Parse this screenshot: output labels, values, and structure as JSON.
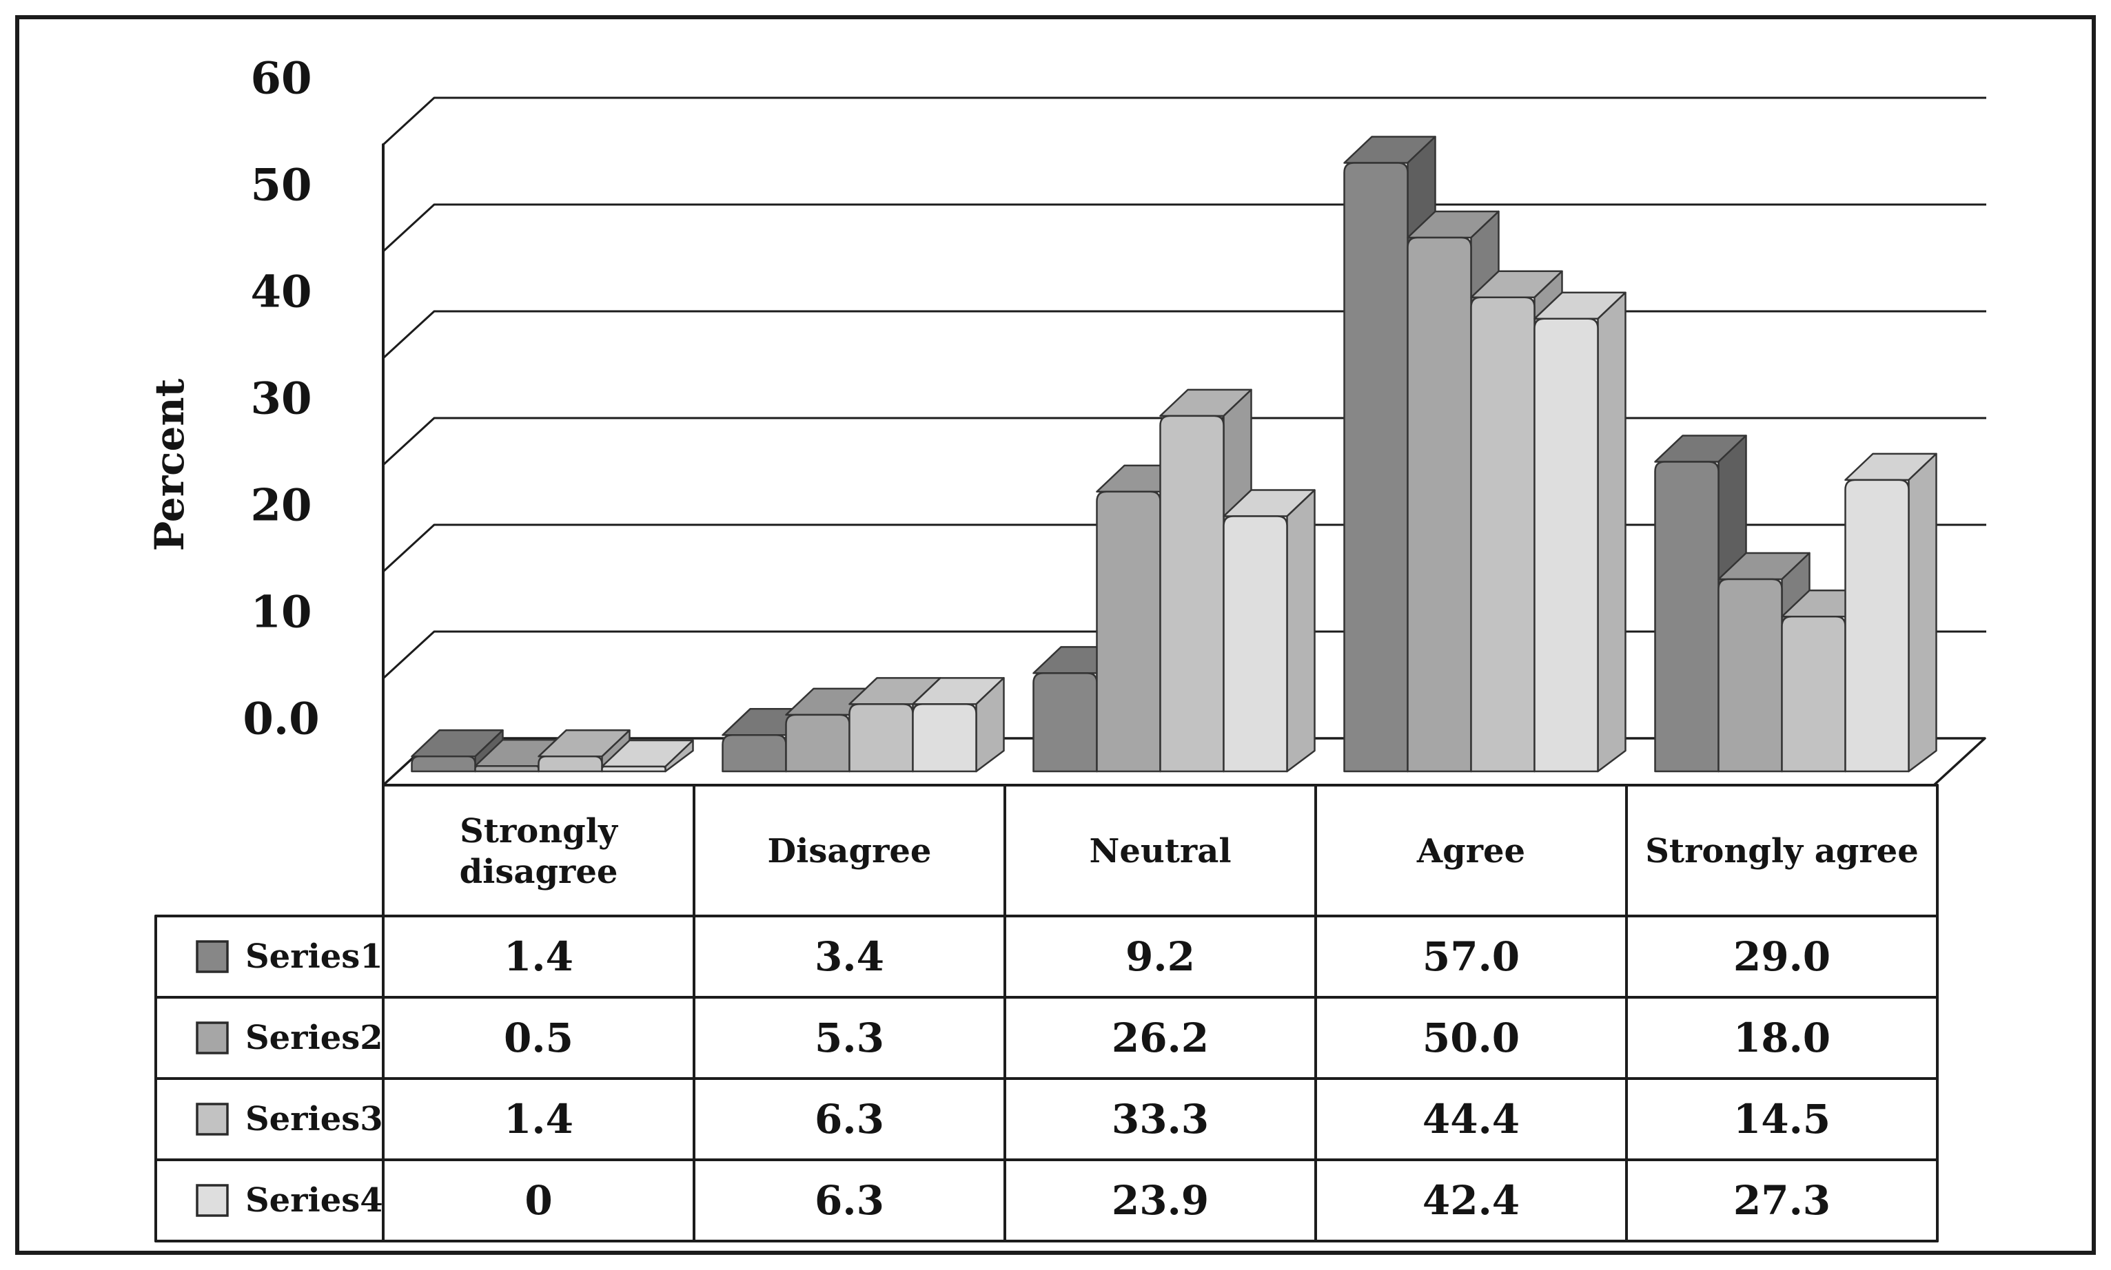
{
  "chart_data": {
    "type": "bar",
    "variant": "3d-clustered-column-with-data-table",
    "title": "",
    "xlabel": "",
    "ylabel": "Percent",
    "ylim": [
      0,
      60
    ],
    "ytick_labels": [
      "0.0",
      "10",
      "20",
      "30",
      "40",
      "50",
      "60"
    ],
    "ytick_values": [
      0,
      10,
      20,
      30,
      40,
      50,
      60
    ],
    "grid": true,
    "legend_position": "left-of-table-rows",
    "categories": [
      "Strongly disagree",
      "Disagree",
      "Neutral",
      "Agree",
      "Strongly agree"
    ],
    "series": [
      {
        "name": "Series1",
        "values": [
          1.4,
          3.4,
          9.2,
          57.0,
          29.0
        ],
        "display": [
          "1.4",
          "3.4",
          "9.2",
          "57.0",
          "29.0"
        ],
        "colors": {
          "front": "#878787",
          "side": "#5f5f5f",
          "top": "#787878"
        }
      },
      {
        "name": "Series2",
        "values": [
          0.5,
          5.3,
          26.2,
          50.0,
          18.0
        ],
        "display": [
          "0.5",
          "5.3",
          "26.2",
          "50.0",
          "18.0"
        ],
        "colors": {
          "front": "#a6a6a6",
          "side": "#7e7e7e",
          "top": "#979797"
        }
      },
      {
        "name": "Series3",
        "values": [
          1.4,
          6.3,
          33.3,
          44.4,
          14.5
        ],
        "display": [
          "1.4",
          "6.3",
          "33.3",
          "44.4",
          "14.5"
        ],
        "colors": {
          "front": "#c2c2c2",
          "side": "#9b9b9b",
          "top": "#b3b3b3"
        }
      },
      {
        "name": "Series4",
        "values": [
          0,
          6.3,
          23.9,
          42.4,
          27.3
        ],
        "display": [
          "0",
          "6.3",
          "23.9",
          "42.4",
          "27.3"
        ],
        "colors": {
          "front": "#dedede",
          "side": "#b4b4b4",
          "top": "#d3d3d3"
        }
      }
    ],
    "colors": {
      "ink": "#1c1c1c",
      "background": "#ffffff"
    }
  }
}
